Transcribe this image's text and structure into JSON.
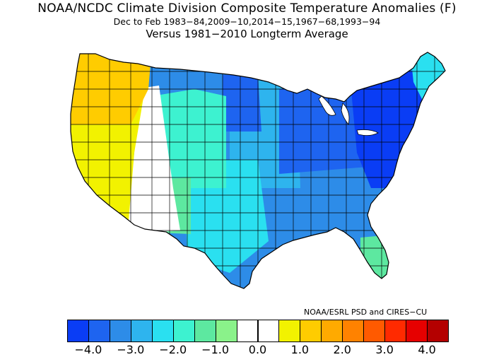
{
  "header": {
    "title": "NOAA/NCDC Climate Division Composite Temperature Anomalies (F)",
    "subtitle": "Dec to Feb  1983−84,2009−10,2014−15,1967−68,1993−94",
    "baseline": "Versus 1981−2010 Longterm Average"
  },
  "credit": "NOAA/ESRL PSD and CIRES−CU",
  "legend": {
    "colors": [
      "#0a3df5",
      "#1e64f0",
      "#2d8ce8",
      "#2eb4ee",
      "#2ae0f0",
      "#3df2d0",
      "#5de8a0",
      "#8af28a",
      "#ffffff",
      "#ffffff",
      "#f2f200",
      "#ffcc00",
      "#ffaa00",
      "#ff8200",
      "#ff5a00",
      "#ff2a00",
      "#e60000",
      "#b40000"
    ],
    "ticks": [
      "−4.0",
      "−3.0",
      "−2.0",
      "−1.0",
      "0.0",
      "1.0",
      "2.0",
      "3.0",
      "4.0"
    ]
  },
  "map": {
    "regions": [
      {
        "name": "pacific-northwest",
        "anomaly": 1.8,
        "color": "#ffcc00"
      },
      {
        "name": "far-west",
        "anomaly": 1.0,
        "color": "#f2f200"
      },
      {
        "name": "great-basin",
        "anomaly": 0.0,
        "color": "#ffffff"
      },
      {
        "name": "northern-rockies",
        "anomaly": -1.5,
        "color": "#3df2d0"
      },
      {
        "name": "southwest",
        "anomaly": -0.8,
        "color": "#5de8a0"
      },
      {
        "name": "northern-plains",
        "anomaly": -3.5,
        "color": "#1e64f0"
      },
      {
        "name": "central-plains",
        "anomaly": -2.5,
        "color": "#2eb4ee"
      },
      {
        "name": "southern-plains",
        "anomaly": -2.0,
        "color": "#2ae0f0"
      },
      {
        "name": "midwest",
        "anomaly": -3.5,
        "color": "#1e64f0"
      },
      {
        "name": "northeast",
        "anomaly": -3.8,
        "color": "#0a3df5"
      },
      {
        "name": "southeast",
        "anomaly": -2.8,
        "color": "#2d8ce8"
      },
      {
        "name": "florida",
        "anomaly": -1.0,
        "color": "#5de8a0"
      },
      {
        "name": "new-england",
        "anomaly": -2.0,
        "color": "#2ae0f0"
      }
    ]
  }
}
